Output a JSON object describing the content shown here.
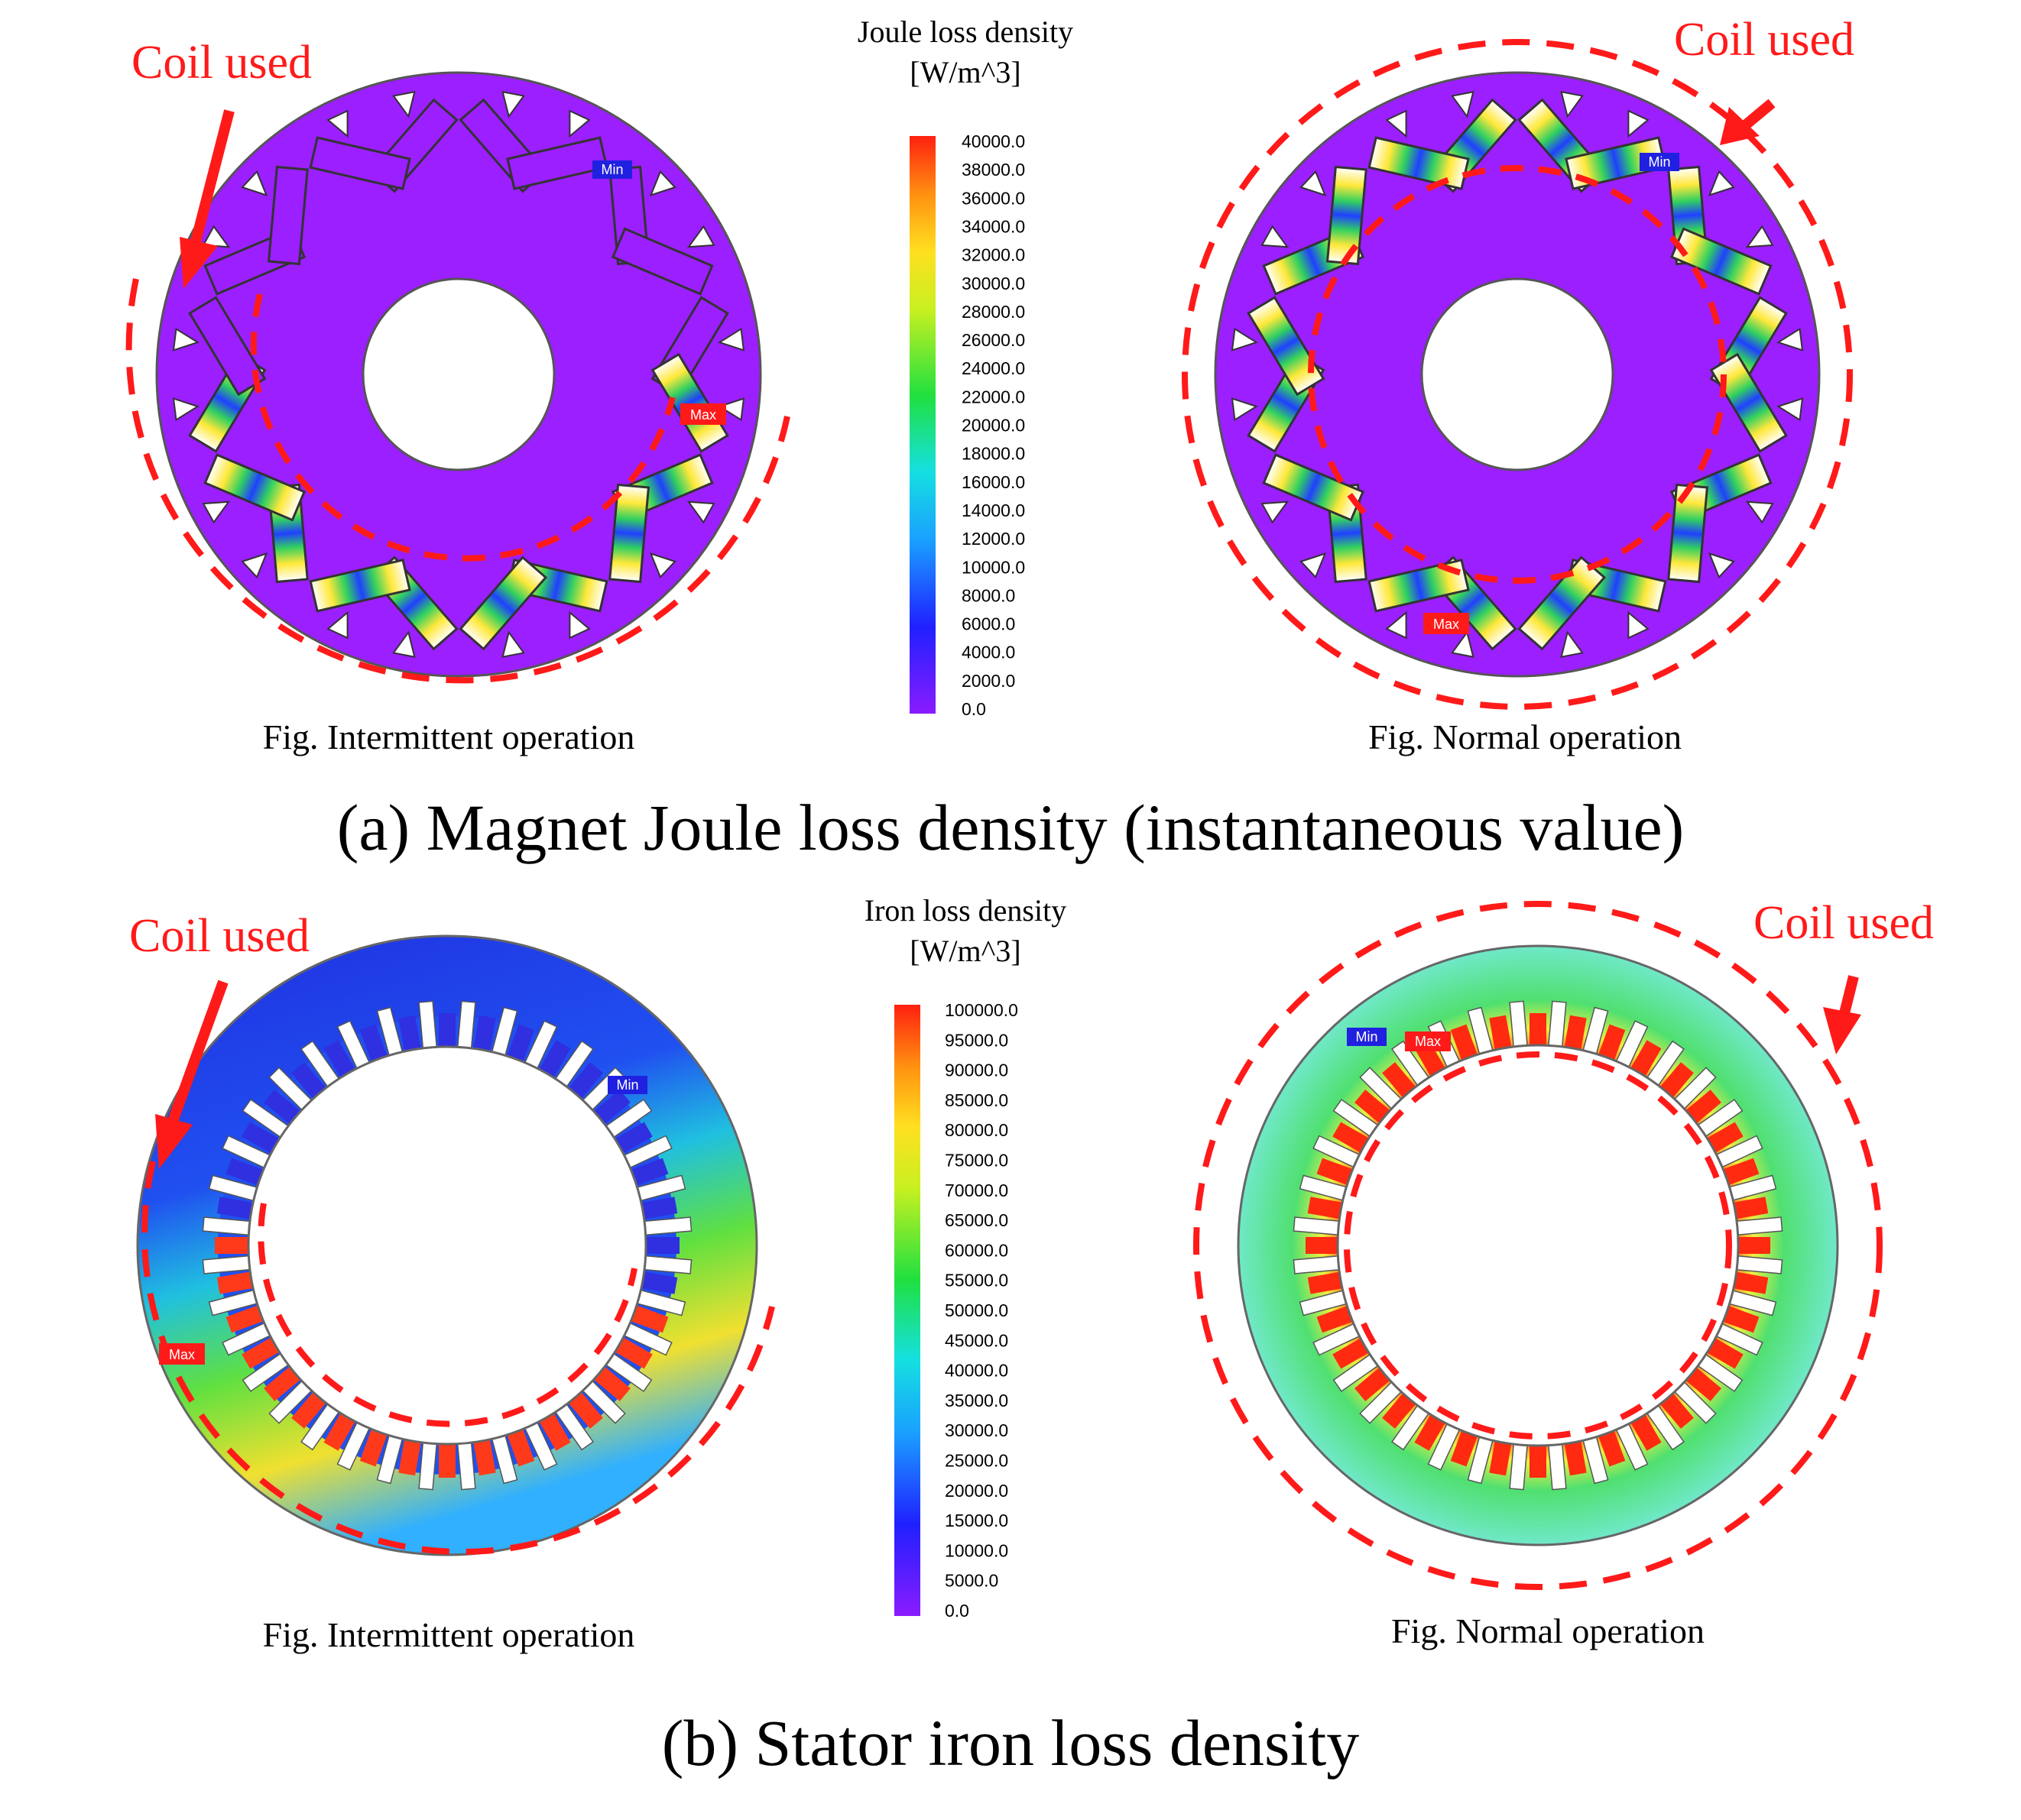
{
  "panel_a": {
    "legend": {
      "title_line1": "Joule loss density",
      "title_line2": "[W/m^3]",
      "ticks": [
        "40000.0",
        "38000.0",
        "36000.0",
        "34000.0",
        "32000.0",
        "30000.0",
        "28000.0",
        "26000.0",
        "24000.0",
        "22000.0",
        "20000.0",
        "18000.0",
        "16000.0",
        "14000.0",
        "12000.0",
        "10000.0",
        "8000.0",
        "6000.0",
        "4000.0",
        "2000.0",
        "0.0"
      ]
    },
    "left": {
      "callout": "Coil used",
      "caption": "Fig. Intermittent operation",
      "max_tag": "Max",
      "min_tag": "Min"
    },
    "right": {
      "callout": "Coil used",
      "caption": "Fig. Normal operation",
      "max_tag": "Max",
      "min_tag": "Min"
    },
    "section_caption": "(a) Magnet Joule loss density (instantaneous value)"
  },
  "panel_b": {
    "legend": {
      "title_line1": "Iron loss density",
      "title_line2": "[W/m^3]",
      "ticks": [
        "100000.0",
        "95000.0",
        "90000.0",
        "85000.0",
        "80000.0",
        "75000.0",
        "70000.0",
        "65000.0",
        "60000.0",
        "55000.0",
        "50000.0",
        "45000.0",
        "40000.0",
        "35000.0",
        "30000.0",
        "25000.0",
        "20000.0",
        "15000.0",
        "10000.0",
        "5000.0",
        "0.0"
      ]
    },
    "left": {
      "callout": "Coil used",
      "caption": "Fig. Intermittent operation",
      "max_tag": "Max",
      "min_tag": "Min"
    },
    "right": {
      "callout": "Coil used",
      "caption": "Fig. Normal operation",
      "max_tag": "Max",
      "min_tag": "Min"
    },
    "section_caption": "(b) Stator iron loss density"
  },
  "colors": {
    "rotor": "#9b1fff",
    "stator_low": "#1f3cf0",
    "stator_normal": "#5fe0b0",
    "stator_hot": "#ff3a1a",
    "callout": "#ff1a1a"
  }
}
